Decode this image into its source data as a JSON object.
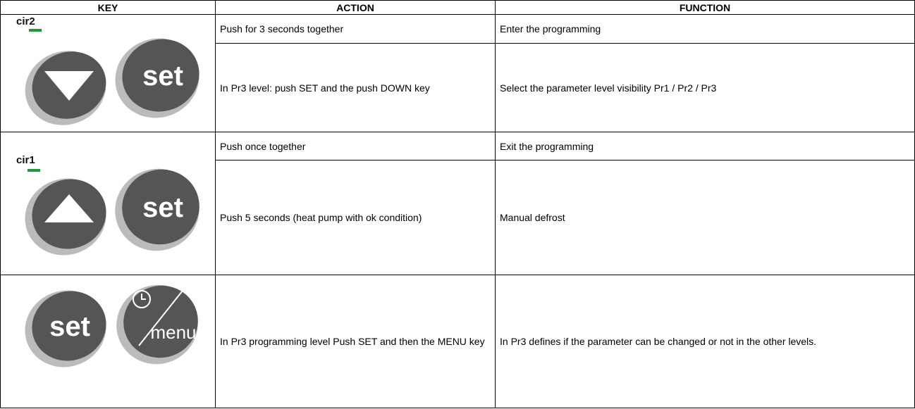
{
  "table": {
    "headers": [
      "KEY",
      "ACTION",
      "FUNCTION"
    ],
    "groups": [
      {
        "key": {
          "label": "cir2",
          "buttons": [
            "set"
          ]
        },
        "rows": [
          [
            "Push for 3 seconds together",
            "Enter the programming"
          ],
          [
            "In Pr3 level: push SET and the push DOWN key",
            "Select the parameter level visibility Pr1 / Pr2 / Pr3"
          ]
        ]
      },
      {
        "key": {
          "label": "cir1",
          "buttons": [
            "set"
          ]
        },
        "rows": [
          [
            "Push once together",
            "Exit the programming"
          ],
          [
            "Push 5 seconds (heat pump with ok condition)",
            "Manual defrost"
          ]
        ]
      },
      {
        "key": {
          "buttons": [
            "set",
            "menu"
          ]
        },
        "rows": [
          [
            "In Pr3 programming level Push SET and then the MENU key",
            "In Pr3 defines if the parameter can be changed or not in the other levels."
          ]
        ]
      }
    ]
  }
}
